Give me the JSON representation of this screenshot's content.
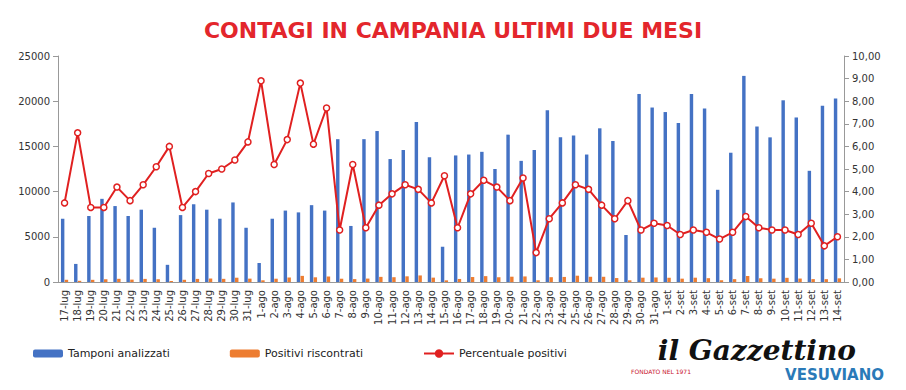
{
  "chart_data": {
    "type": "bar",
    "title": "CONTAGI IN CAMPANIA ULTIMI DUE MESI",
    "annotations": [
      "il Gazzettino",
      "FONDATO NEL 1971",
      "VESUVIANO"
    ],
    "categories": [
      "17-lug",
      "18-lug",
      "19-lug",
      "20-lug",
      "21-lug",
      "22-lug",
      "23-lug",
      "24-lug",
      "25-lug",
      "26-lug",
      "27-lug",
      "28-lug",
      "29-lug",
      "30-lug",
      "31-lug",
      "1-ago",
      "2-ago",
      "3-ago",
      "4-ago",
      "5-ago",
      "6-ago",
      "7-ago",
      "8-ago",
      "9-ago",
      "10-ago",
      "11-ago",
      "12-ago",
      "13-ago",
      "14-ago",
      "15-ago",
      "16-ago",
      "17-ago",
      "18-ago",
      "19-ago",
      "20-ago",
      "21-ago",
      "22-ago",
      "23-ago",
      "24-ago",
      "25-ago",
      "26-ago",
      "27-ago",
      "28-ago",
      "29-ago",
      "30-ago",
      "31-ago",
      "1-set",
      "2-set",
      "3-set",
      "4-set",
      "5-set",
      "6-set",
      "7-set",
      "8-set",
      "9-set",
      "10-set",
      "11-set",
      "12-set",
      "13-set",
      "14-set"
    ],
    "series": [
      {
        "name": "Tamponi analizzati",
        "type": "bar",
        "color": "#4472c4",
        "values": [
          7000,
          2000,
          7300,
          9200,
          8400,
          7300,
          8000,
          6000,
          1900,
          7400,
          8600,
          8000,
          7000,
          8800,
          6000,
          2100,
          7000,
          7900,
          7700,
          8500,
          7900,
          15800,
          6200,
          15800,
          16700,
          13600,
          14600,
          17700,
          13800,
          3900,
          14000,
          14100,
          14400,
          12500,
          16300,
          13400,
          14600,
          19000,
          16000,
          16200,
          14100,
          17000,
          15600,
          5200,
          20800,
          19300,
          18800,
          17600,
          20800,
          19200,
          10200,
          14300,
          22800,
          17200,
          16000,
          20100,
          18200,
          12300,
          19500,
          20300
        ]
      },
      {
        "name": "Positivi riscontrati",
        "type": "bar",
        "color": "#ed7d31",
        "values": [
          245,
          132,
          241,
          304,
          353,
          263,
          344,
          306,
          114,
          244,
          344,
          384,
          350,
          475,
          372,
          187,
          364,
          498,
          678,
          519,
          608,
          363,
          322,
          379,
          568,
          530,
          628,
          726,
          483,
          183,
          336,
          550,
          648,
          525,
          587,
          616,
          190,
          532,
          560,
          697,
          578,
          578,
          437,
          187,
          478,
          502,
          470,
          370,
          478,
          422,
          194,
          315,
          661,
          413,
          368,
          462,
          382,
          320,
          312,
          406
        ]
      },
      {
        "name": "Percentuale positivi",
        "type": "line",
        "axis": "y2",
        "color": "#e02020",
        "marker": "circle",
        "values": [
          3.5,
          6.6,
          3.3,
          3.3,
          4.2,
          3.6,
          4.3,
          5.1,
          6.0,
          3.3,
          4.0,
          4.8,
          5.0,
          5.4,
          6.2,
          8.9,
          5.2,
          6.3,
          8.8,
          6.1,
          7.7,
          2.3,
          5.2,
          2.4,
          3.4,
          3.9,
          4.3,
          4.1,
          3.5,
          4.7,
          2.4,
          3.9,
          4.5,
          4.2,
          3.6,
          4.6,
          1.3,
          2.8,
          3.5,
          4.3,
          4.1,
          3.4,
          2.8,
          3.6,
          2.3,
          2.6,
          2.5,
          2.1,
          2.3,
          2.2,
          1.9,
          2.2,
          2.9,
          2.4,
          2.3,
          2.3,
          2.1,
          2.6,
          1.6,
          2.0
        ]
      }
    ],
    "ylim": [
      0,
      25000
    ],
    "yticks": [
      0,
      5000,
      10000,
      15000,
      20000,
      25000
    ],
    "y2lim": [
      0,
      10
    ],
    "y2ticks": [
      {
        "value": 0,
        "label": "0,00"
      },
      {
        "value": 1,
        "label": "1,00"
      },
      {
        "value": 2,
        "label": "2,00"
      },
      {
        "value": 3,
        "label": "3,00"
      },
      {
        "value": 4,
        "label": "4,00"
      },
      {
        "value": 5,
        "label": "5,00"
      },
      {
        "value": 6,
        "label": "6,00"
      },
      {
        "value": 7,
        "label": "7,00"
      },
      {
        "value": 8,
        "label": "8,00"
      },
      {
        "value": 9,
        "label": "9,00"
      },
      {
        "value": 10,
        "label": "10,00"
      }
    ],
    "grid": false,
    "legend": "bottom"
  }
}
